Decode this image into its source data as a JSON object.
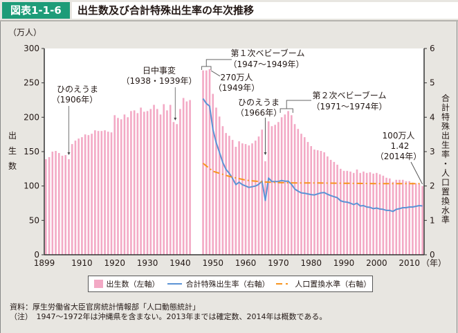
{
  "header": {
    "figure_label": "図表1-1-6",
    "title": "出生数及び合計特殊出生率の年次推移"
  },
  "legend": {
    "births": "出生数（左軸）",
    "tfr": "合計特殊出生率（右軸）",
    "replacement": "人口置換水準（右軸）"
  },
  "notes": {
    "source": "資料：厚生労働省大臣官房統計情報部「人口動態統計」",
    "note": "（注）　1947～1972年は沖縄県を含まない。2013年までは確定数、2014年は概数である。"
  },
  "colors": {
    "bar": "#f3a9c5",
    "tfr_line": "#5b93d5",
    "replacement_line": "#f7941d",
    "header_tag": "#1e9c78"
  },
  "chart_data": {
    "type": "bar",
    "title": "出生数及び合計特殊出生率の年次推移",
    "xlabel": "（年）",
    "ylabel": "出生数",
    "y_unit": "（万人）",
    "y2label": "合計特殊出生率・人口置換水準",
    "ylim": [
      0,
      300
    ],
    "y2lim": [
      0,
      6
    ],
    "yticks": [
      0,
      50,
      100,
      150,
      200,
      250,
      300
    ],
    "y2ticks": [
      0,
      1,
      2,
      3,
      4,
      5,
      6
    ],
    "xticks": [
      1899,
      1910,
      1920,
      1930,
      1940,
      1950,
      1960,
      1970,
      1980,
      1990,
      2000,
      2010
    ],
    "x_start": 1899,
    "x_end": 2014,
    "grid": false,
    "legend_position": "bottom",
    "series": [
      {
        "name": "出生数（左軸）",
        "type": "bar",
        "axis": "left",
        "x": [
          1899,
          1900,
          1901,
          1902,
          1903,
          1904,
          1905,
          1906,
          1907,
          1908,
          1909,
          1910,
          1911,
          1912,
          1913,
          1914,
          1915,
          1916,
          1917,
          1918,
          1919,
          1920,
          1921,
          1922,
          1923,
          1924,
          1925,
          1926,
          1927,
          1928,
          1929,
          1930,
          1931,
          1932,
          1933,
          1934,
          1935,
          1936,
          1937,
          1938,
          1939,
          1940,
          1941,
          1942,
          1943,
          1947,
          1948,
          1949,
          1950,
          1951,
          1952,
          1953,
          1954,
          1955,
          1956,
          1957,
          1958,
          1959,
          1960,
          1961,
          1962,
          1963,
          1964,
          1965,
          1966,
          1967,
          1968,
          1969,
          1970,
          1971,
          1972,
          1973,
          1974,
          1975,
          1976,
          1977,
          1978,
          1979,
          1980,
          1981,
          1982,
          1983,
          1984,
          1985,
          1986,
          1987,
          1988,
          1989,
          1990,
          1991,
          1992,
          1993,
          1994,
          1995,
          1996,
          1997,
          1998,
          1999,
          2000,
          2001,
          2002,
          2003,
          2004,
          2005,
          2006,
          2007,
          2008,
          2009,
          2010,
          2011,
          2012,
          2013,
          2014
        ],
        "values": [
          139,
          142,
          150,
          151,
          148,
          144,
          145,
          139,
          161,
          166,
          169,
          171,
          175,
          174,
          176,
          181,
          180,
          180,
          181,
          179,
          178,
          203,
          199,
          197,
          204,
          200,
          209,
          210,
          206,
          214,
          208,
          209,
          212,
          218,
          212,
          204,
          219,
          210,
          218,
          193,
          190,
          212,
          228,
          223,
          225,
          268,
          268,
          270,
          234,
          214,
          201,
          187,
          177,
          173,
          167,
          157,
          165,
          162,
          161,
          159,
          162,
          166,
          172,
          182,
          136,
          194,
          187,
          189,
          193,
          200,
          204,
          209,
          203,
          190,
          183,
          176,
          171,
          164,
          158,
          153,
          152,
          151,
          149,
          143,
          138,
          135,
          131,
          125,
          122,
          122,
          121,
          119,
          124,
          119,
          121,
          119,
          120,
          118,
          119,
          117,
          115,
          112,
          111,
          106,
          109,
          109,
          109,
          107,
          107,
          105,
          104,
          103,
          100
        ]
      },
      {
        "name": "合計特殊出生率（右軸）",
        "type": "line",
        "axis": "right",
        "x": [
          1947,
          1948,
          1949,
          1950,
          1951,
          1952,
          1953,
          1954,
          1955,
          1956,
          1957,
          1958,
          1959,
          1960,
          1961,
          1962,
          1963,
          1964,
          1965,
          1966,
          1967,
          1968,
          1969,
          1970,
          1971,
          1972,
          1973,
          1974,
          1975,
          1976,
          1977,
          1978,
          1979,
          1980,
          1981,
          1982,
          1983,
          1984,
          1985,
          1986,
          1987,
          1988,
          1989,
          1990,
          1991,
          1992,
          1993,
          1994,
          1995,
          1996,
          1997,
          1998,
          1999,
          2000,
          2001,
          2002,
          2003,
          2004,
          2005,
          2006,
          2007,
          2008,
          2009,
          2010,
          2011,
          2012,
          2013,
          2014
        ],
        "values": [
          4.54,
          4.4,
          4.32,
          3.65,
          3.26,
          2.98,
          2.69,
          2.48,
          2.37,
          2.22,
          2.04,
          2.11,
          2.04,
          2.0,
          1.96,
          1.98,
          2.0,
          2.05,
          2.14,
          1.58,
          2.23,
          2.13,
          2.13,
          2.13,
          2.16,
          2.14,
          2.14,
          2.05,
          1.91,
          1.85,
          1.8,
          1.79,
          1.77,
          1.75,
          1.74,
          1.77,
          1.8,
          1.81,
          1.76,
          1.72,
          1.69,
          1.66,
          1.57,
          1.54,
          1.53,
          1.5,
          1.46,
          1.5,
          1.42,
          1.43,
          1.39,
          1.38,
          1.34,
          1.36,
          1.33,
          1.32,
          1.29,
          1.29,
          1.26,
          1.32,
          1.34,
          1.37,
          1.37,
          1.39,
          1.39,
          1.41,
          1.43,
          1.42
        ]
      },
      {
        "name": "人口置換水準（右軸）",
        "type": "line",
        "style": "dash-dot",
        "axis": "right",
        "x": [
          1947,
          1950,
          1955,
          1960,
          1965,
          1970,
          1975,
          1980,
          1990,
          2000,
          2014
        ],
        "values": [
          2.66,
          2.43,
          2.28,
          2.17,
          2.12,
          2.1,
          2.09,
          2.09,
          2.08,
          2.07,
          2.07
        ]
      }
    ],
    "annotations": [
      {
        "id": "hinoeuma1906",
        "lines": [
          "ひのえうま",
          "（1906年）"
        ],
        "year": 1906
      },
      {
        "id": "nicchu",
        "lines": [
          "日中事変",
          "（1938・1939年）"
        ],
        "year": 1938.5
      },
      {
        "id": "boom1",
        "lines": [
          "第１次ベビーブーム",
          "（1947～1949年）"
        ],
        "years": [
          1947,
          1949
        ]
      },
      {
        "id": "peak1949",
        "lines": [
          "270万人",
          "（1949年）"
        ],
        "year": 1949
      },
      {
        "id": "hinoeuma1966",
        "lines": [
          "ひのえうま",
          "（1966年）"
        ],
        "year": 1966
      },
      {
        "id": "boom2",
        "lines": [
          "第２次ベビーブーム",
          "（1971～1974年）"
        ],
        "years": [
          1971,
          1974
        ]
      },
      {
        "id": "latest2014",
        "lines": [
          "100万人",
          "1.42",
          "（2014年）"
        ],
        "year": 2014
      }
    ],
    "ylabel_chars": [
      "出",
      "生",
      "数"
    ],
    "y2label_chars": [
      "合",
      "計",
      "特",
      "殊",
      "出",
      "生",
      "率",
      "・",
      "人",
      "口",
      "置",
      "換",
      "水",
      "準"
    ]
  }
}
